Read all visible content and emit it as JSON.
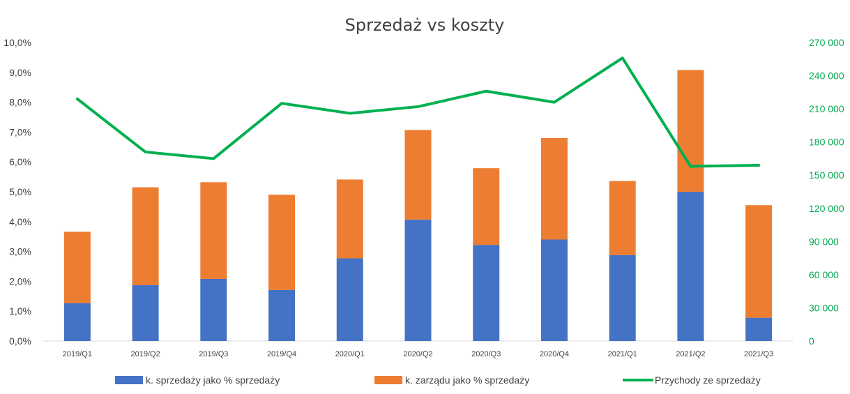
{
  "chart_data": {
    "type": "bar",
    "title": "Sprzedaż vs koszty",
    "categories": [
      "2019/Q1",
      "2019/Q2",
      "2019/Q3",
      "2019/Q4",
      "2020/Q1",
      "2020/Q2",
      "2020/Q3",
      "2020/Q4",
      "2021/Q1",
      "2021/Q2",
      "2021/Q3"
    ],
    "series": [
      {
        "name": "k. sprzedaży jako % sprzedaży",
        "type": "stacked-bar",
        "axis": "left",
        "color": "#4472C4",
        "values": [
          1.27,
          1.87,
          2.08,
          1.71,
          2.77,
          4.07,
          3.22,
          3.4,
          2.88,
          5.0,
          0.78
        ]
      },
      {
        "name": "k. zarządu jako % sprzedaży",
        "type": "stacked-bar",
        "axis": "left",
        "color": "#ED7D31",
        "values": [
          2.39,
          3.28,
          3.24,
          3.19,
          2.64,
          3.0,
          2.57,
          3.4,
          2.48,
          4.08,
          3.77
        ]
      },
      {
        "name": "Przychody ze sprzedaży",
        "type": "line",
        "axis": "right",
        "color": "#00B050",
        "values": [
          219000,
          171000,
          165000,
          215000,
          206000,
          212000,
          226000,
          216000,
          256000,
          158000,
          159000
        ]
      }
    ],
    "y_left": {
      "ylim": [
        0,
        10
      ],
      "ticks": [
        "0,0%",
        "1,0%",
        "2,0%",
        "3,0%",
        "4,0%",
        "5,0%",
        "6,0%",
        "7,0%",
        "8,0%",
        "9,0%",
        "10,0%"
      ]
    },
    "y_right": {
      "ylim": [
        0,
        270000
      ],
      "ticks": [
        "0",
        "30 000",
        "60 000",
        "90 000",
        "120 000",
        "150 000",
        "180 000",
        "210 000",
        "240 000",
        "270 000"
      ],
      "color": "#00B050"
    },
    "grid": false,
    "legend_position": "bottom"
  }
}
